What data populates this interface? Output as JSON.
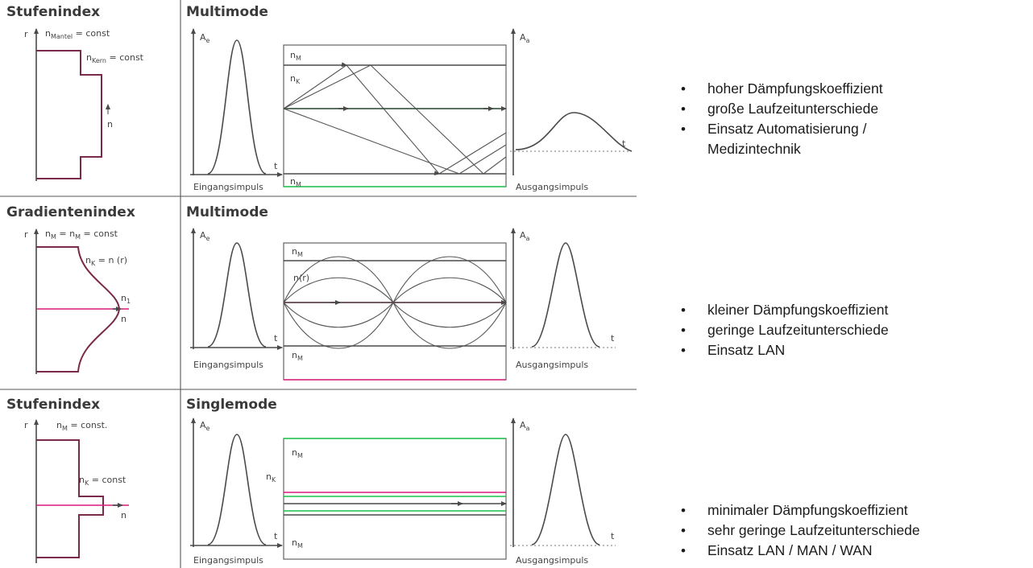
{
  "sections": [
    {
      "index_title": "Stufenindex",
      "mode_title": "Multimode",
      "bullets": [
        "hoher Dämpfungskoeffizient",
        "große Laufzeitunterschiede",
        "Einsatz Automatisierung / Medizintechnik"
      ]
    },
    {
      "index_title": "Gradientenindex",
      "mode_title": "Multimode",
      "bullets": [
        "kleiner Dämpfungskoeffizient",
        "geringe Laufzeitunterschiede",
        "Einsatz LAN"
      ]
    },
    {
      "index_title": "Stufenindex",
      "mode_title": "Singlemode",
      "bullets": [
        "minimaler Dämpfungskoeffizient",
        "sehr geringe Laufzeitunterschiede",
        "Einsatz LAN / MAN / WAN"
      ]
    }
  ],
  "labels": {
    "eingang": "Eingangsimpuls",
    "ausgang": "Ausgangsimpuls",
    "r": "r",
    "n": "n",
    "t": "t",
    "A": "A",
    "e": "e",
    "a": "a",
    "nM": "n",
    "M": "M",
    "nK": "n",
    "K": "K",
    "nr": "n(r)",
    "s1_top": "n",
    "s1_top_sub": "Mantel",
    "s1_top_rest": " = const",
    "s1_mid": "n",
    "s1_mid_sub": "Kern",
    "s1_mid_rest": " = const",
    "s2_top": "n",
    "s2_top_sub": "M",
    "s2_top_rest": " = n",
    "s2_top_sub2": "M",
    "s2_top_rest2": " = const",
    "s2_mid": "n",
    "s2_mid_sub": "K",
    "s2_mid_rest": " = n (r)",
    "s2_n1": "n",
    "s2_n1_sub": "1",
    "s3_top": "n",
    "s3_top_sub": "M",
    "s3_top_rest": " = const.",
    "s3_mid": "n",
    "s3_mid_sub": "K",
    "s3_mid_rest": " = const"
  }
}
